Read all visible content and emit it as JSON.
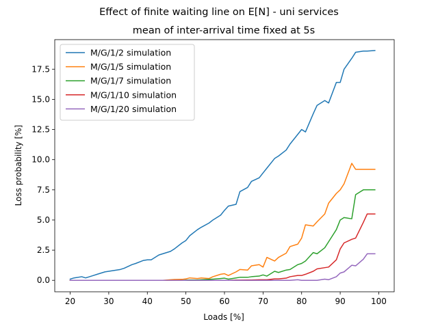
{
  "chart_data": {
    "type": "line",
    "title": "Effect of finite waiting line on E[N] - uni services",
    "subtitle": "mean of inter-arrival time fixed at 5s",
    "xlabel": "Loads [%]",
    "ylabel": "Loss probability [%]",
    "xlim": [
      16,
      104
    ],
    "ylim": [
      -0.95,
      19.95
    ],
    "xticks": [
      20,
      30,
      40,
      50,
      60,
      70,
      80,
      90,
      100
    ],
    "xtick_labels": [
      "20",
      "30",
      "40",
      "50",
      "60",
      "70",
      "80",
      "90",
      "100"
    ],
    "yticks": [
      0.0,
      2.5,
      5.0,
      7.5,
      10.0,
      12.5,
      15.0,
      17.5
    ],
    "ytick_labels": [
      "0.0",
      "2.5",
      "5.0",
      "7.5",
      "10.0",
      "12.5",
      "15.0",
      "17.5"
    ],
    "grid": false,
    "legend_position": "top-left",
    "x": [
      20,
      21,
      23,
      24,
      26,
      27,
      29,
      30,
      31,
      33,
      34,
      36,
      37,
      39,
      40,
      41,
      43,
      44,
      46,
      47,
      49,
      50,
      51,
      53,
      54,
      56,
      57,
      59,
      60,
      61,
      63,
      64,
      66,
      67,
      69,
      70,
      71,
      73,
      74,
      76,
      77,
      79,
      80,
      81,
      83,
      84,
      86,
      87,
      89,
      90,
      91,
      93,
      94,
      96,
      97,
      99
    ],
    "series": [
      {
        "name": "M/G/1/2 simulation",
        "color": "#1f77b4",
        "values": [
          0.1,
          0.2,
          0.3,
          0.2,
          0.4,
          0.5,
          0.7,
          0.75,
          0.8,
          0.9,
          1.0,
          1.3,
          1.4,
          1.65,
          1.7,
          1.7,
          2.1,
          2.2,
          2.4,
          2.6,
          3.1,
          3.3,
          3.7,
          4.2,
          4.4,
          4.75,
          5.0,
          5.4,
          5.8,
          6.15,
          6.3,
          7.35,
          7.7,
          8.2,
          8.5,
          8.9,
          9.3,
          10.1,
          10.3,
          10.8,
          11.3,
          12.1,
          12.5,
          12.3,
          13.8,
          14.5,
          14.9,
          14.7,
          16.4,
          16.4,
          17.5,
          18.4,
          18.9,
          19.0,
          19.0,
          19.05
        ]
      },
      {
        "name": "M/G/1/5 simulation",
        "color": "#ff7f0e",
        "values": [
          0,
          0,
          0,
          0,
          0,
          0,
          0,
          0,
          0,
          0,
          0,
          0,
          0,
          0,
          0,
          0,
          0,
          0,
          0.05,
          0.07,
          0.08,
          0.12,
          0.2,
          0.15,
          0.2,
          0.15,
          0.3,
          0.5,
          0.55,
          0.4,
          0.7,
          0.9,
          0.85,
          1.2,
          1.3,
          1.1,
          1.9,
          1.6,
          1.9,
          2.25,
          2.8,
          3.0,
          3.5,
          4.6,
          4.5,
          4.85,
          5.5,
          6.4,
          7.2,
          7.5,
          8.0,
          9.7,
          9.2,
          9.2,
          9.2,
          9.2
        ]
      },
      {
        "name": "M/G/1/7 simulation",
        "color": "#2ca02c",
        "values": [
          0,
          0,
          0,
          0,
          0,
          0,
          0,
          0,
          0,
          0,
          0,
          0,
          0,
          0,
          0,
          0,
          0,
          0,
          0,
          0,
          0,
          0.02,
          0.03,
          0.03,
          0.05,
          0.08,
          0.1,
          0.15,
          0.18,
          0.1,
          0.2,
          0.25,
          0.25,
          0.3,
          0.35,
          0.45,
          0.35,
          0.75,
          0.65,
          0.85,
          0.9,
          1.3,
          1.4,
          1.6,
          2.3,
          2.2,
          2.7,
          3.2,
          4.2,
          5.0,
          5.2,
          5.1,
          7.1,
          7.5,
          7.5,
          7.5
        ]
      },
      {
        "name": "M/G/1/10 simulation",
        "color": "#d62728",
        "values": [
          0,
          0,
          0,
          0,
          0,
          0,
          0,
          0,
          0,
          0,
          0,
          0,
          0,
          0,
          0,
          0,
          0,
          0,
          0,
          0,
          0,
          0,
          0,
          0,
          0,
          0,
          0,
          0,
          0,
          0,
          0.02,
          0.02,
          0.03,
          0.03,
          0.05,
          0.05,
          0.05,
          0.12,
          0.12,
          0.18,
          0.3,
          0.4,
          0.4,
          0.5,
          0.75,
          0.95,
          1.05,
          1.1,
          1.7,
          2.6,
          3.1,
          3.4,
          3.5,
          4.8,
          5.5,
          5.5
        ]
      },
      {
        "name": "M/G/1/20 simulation",
        "color": "#9467bd",
        "values": [
          0,
          0,
          0,
          0,
          0,
          0,
          0,
          0,
          0,
          0,
          0,
          0,
          0,
          0,
          0,
          0,
          0,
          0,
          0,
          0,
          0,
          0,
          0,
          0,
          0,
          0,
          0,
          0,
          0,
          0,
          0,
          0,
          0,
          0,
          0,
          0,
          0,
          0,
          0,
          0,
          0,
          0.05,
          0,
          0,
          0,
          0,
          0.1,
          0.05,
          0.3,
          0.6,
          0.7,
          1.25,
          1.2,
          1.75,
          2.2,
          2.2
        ]
      }
    ]
  }
}
